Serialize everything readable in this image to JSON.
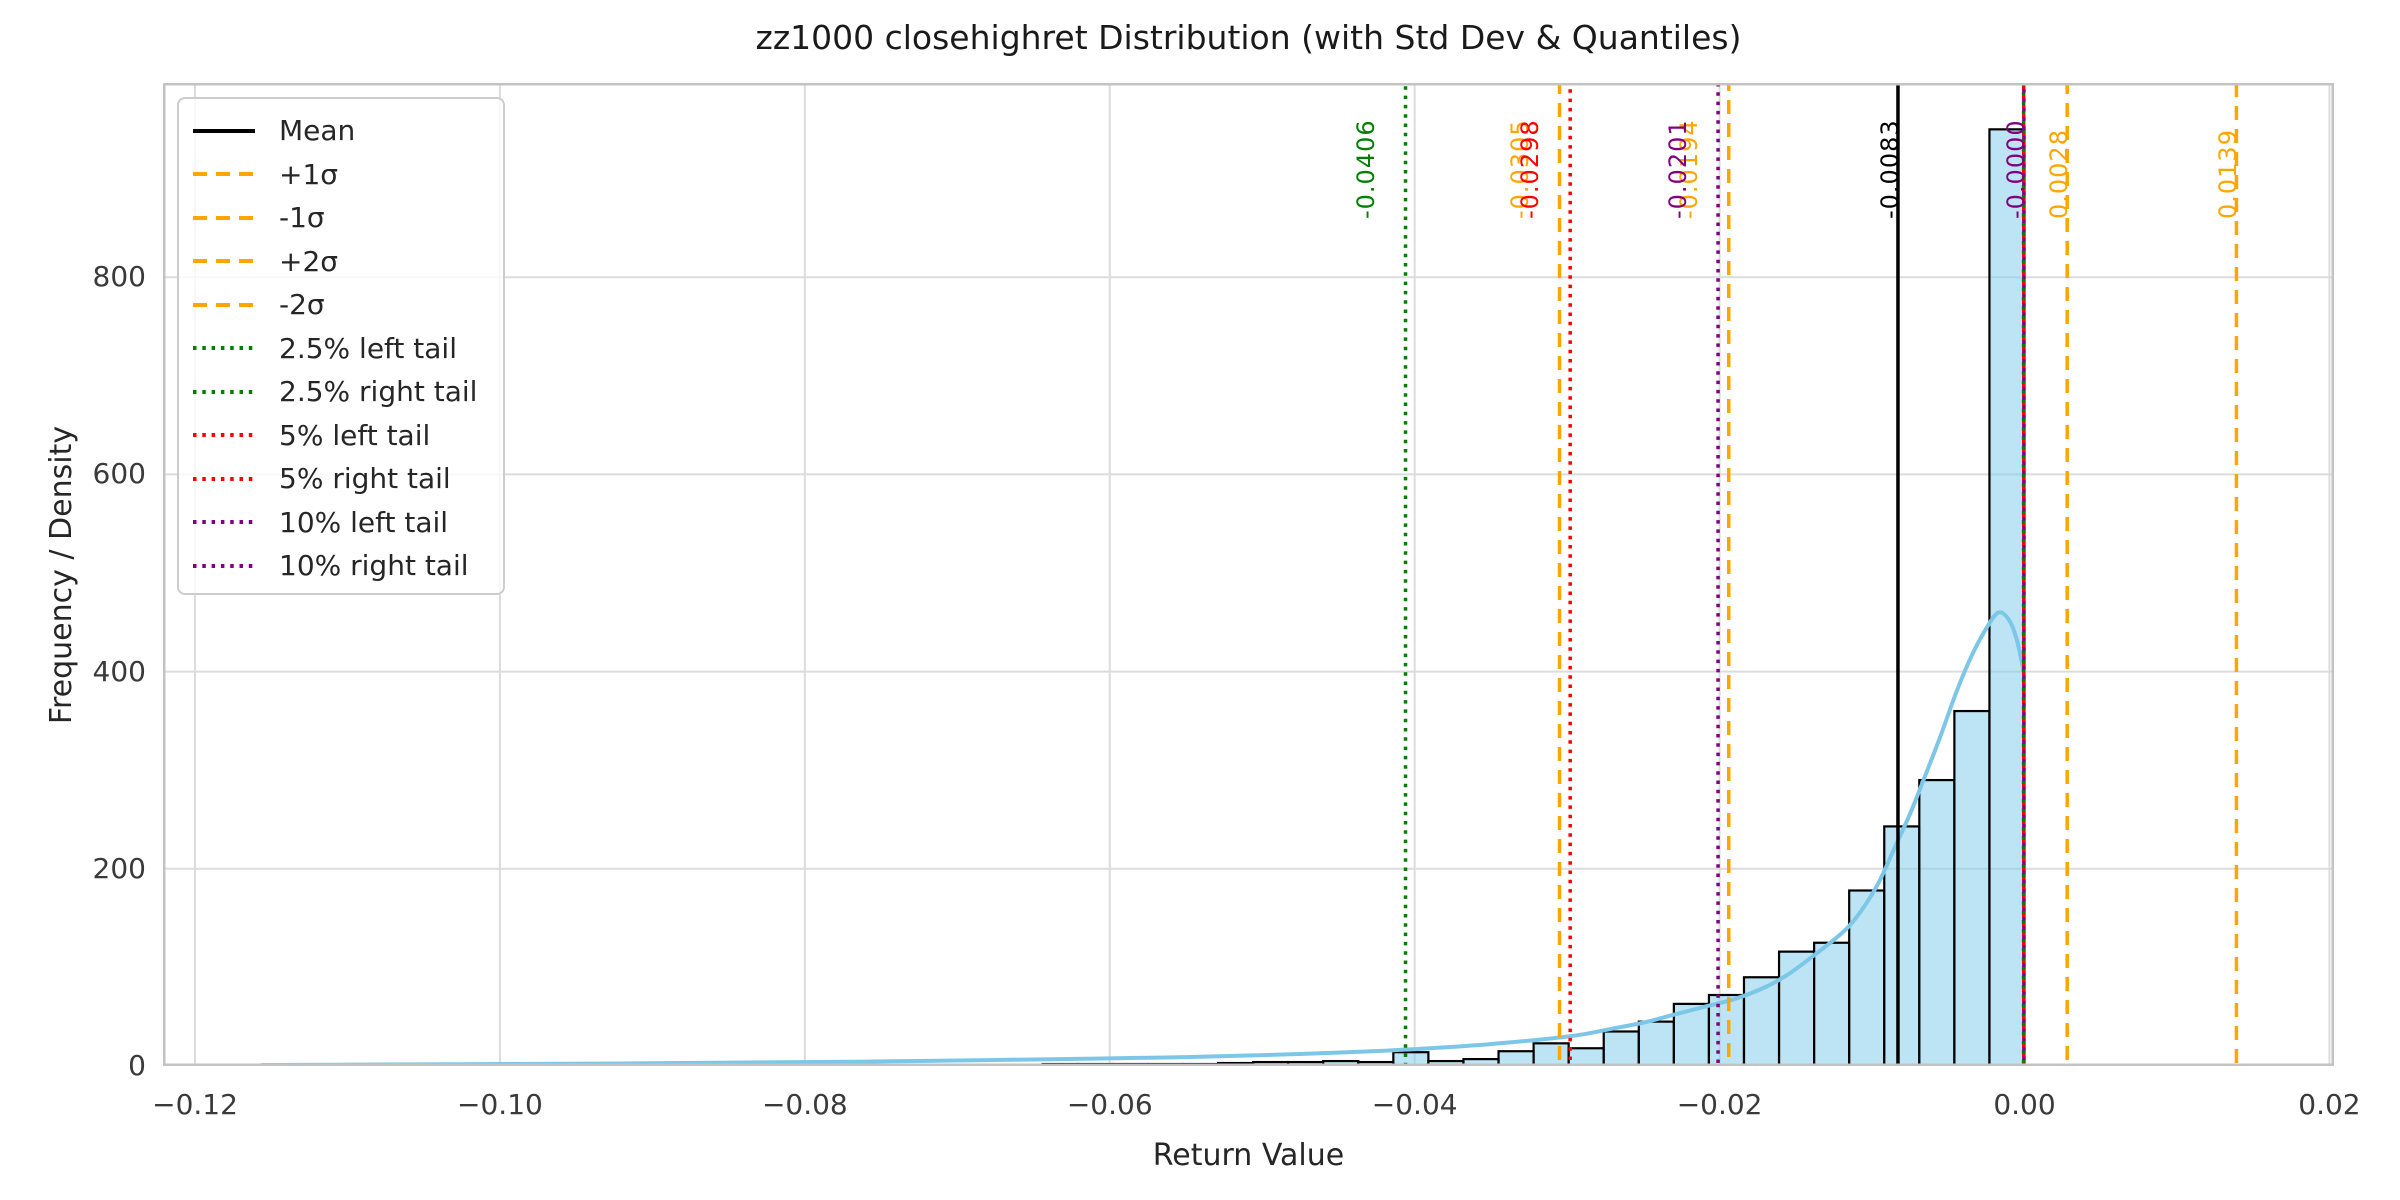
{
  "figure": {
    "title": "zz1000 closehighret Distribution (with Std Dev & Quantiles)",
    "xlabel": "Return Value",
    "ylabel": "Frequency / Density"
  },
  "colors": {
    "background": "#ffffff",
    "grid": "#dcdcdc",
    "spine": "#c3c3c3",
    "title_text": "#1a1a1a",
    "tick_text": "#3a3a3a",
    "hist_fill": "rgba(135,206,235,0.55)",
    "hist_edge": "#000000",
    "kde_line": "#7cc7e8",
    "mean_line": "#000000",
    "sigma_line": "#ffa500",
    "q2_5_line": "#008000",
    "q5_line": "#ff0000",
    "q10_line": "#800080"
  },
  "chart_data": {
    "type": "bar",
    "subtype": "histogram_with_kde",
    "title": "zz1000 closehighret Distribution (with Std Dev & Quantiles)",
    "xlabel": "Return Value",
    "ylabel": "Frequency / Density",
    "xlim": [
      -0.1221,
      0.0203
    ],
    "ylim": [
      0,
      997
    ],
    "grid": true,
    "legend_position": "upper left",
    "x_ticks": [
      {
        "value": -0.12,
        "label": "−0.12"
      },
      {
        "value": -0.1,
        "label": "−0.10"
      },
      {
        "value": -0.08,
        "label": "−0.08"
      },
      {
        "value": -0.06,
        "label": "−0.06"
      },
      {
        "value": -0.04,
        "label": "−0.04"
      },
      {
        "value": -0.02,
        "label": "−0.02"
      },
      {
        "value": 0.0,
        "label": "0.00"
      },
      {
        "value": 0.02,
        "label": "0.02"
      }
    ],
    "y_ticks": [
      {
        "value": 0,
        "label": "0"
      },
      {
        "value": 200,
        "label": "200"
      },
      {
        "value": 400,
        "label": "400"
      },
      {
        "value": 600,
        "label": "600"
      },
      {
        "value": 800,
        "label": "800"
      }
    ],
    "histogram": {
      "bin_start": -0.115,
      "bin_width": 0.0023,
      "counts": [
        1,
        0,
        0,
        0,
        0,
        1,
        0,
        0,
        0,
        1,
        0,
        0,
        1,
        0,
        1,
        0,
        1,
        1,
        1,
        1,
        1,
        1,
        2,
        2,
        2,
        2,
        2,
        3,
        4,
        4,
        5,
        4,
        14,
        5,
        7,
        15,
        23,
        18,
        35,
        45,
        63,
        72,
        90,
        116,
        125,
        178,
        243,
        290,
        360,
        950
      ]
    },
    "kde_points": [
      [
        -0.1156,
        1
      ],
      [
        -0.108,
        1.5
      ],
      [
        -0.1,
        2
      ],
      [
        -0.092,
        2.5
      ],
      [
        -0.084,
        3.5
      ],
      [
        -0.076,
        4.5
      ],
      [
        -0.068,
        6
      ],
      [
        -0.061,
        7.5
      ],
      [
        -0.055,
        9
      ],
      [
        -0.05,
        11
      ],
      [
        -0.046,
        13
      ],
      [
        -0.042,
        15.5
      ],
      [
        -0.039,
        18
      ],
      [
        -0.036,
        21
      ],
      [
        -0.033,
        25
      ],
      [
        -0.031,
        28
      ],
      [
        -0.029,
        32
      ],
      [
        -0.027,
        38
      ],
      [
        -0.025,
        44
      ],
      [
        -0.023,
        52
      ],
      [
        -0.021,
        60
      ],
      [
        -0.019,
        68
      ],
      [
        -0.017,
        80
      ],
      [
        -0.0155,
        93
      ],
      [
        -0.014,
        110
      ],
      [
        -0.0125,
        128
      ],
      [
        -0.0115,
        142
      ],
      [
        -0.0105,
        162
      ],
      [
        -0.0095,
        188
      ],
      [
        -0.0085,
        222
      ],
      [
        -0.0075,
        256
      ],
      [
        -0.0065,
        295
      ],
      [
        -0.0055,
        335
      ],
      [
        -0.0045,
        378
      ],
      [
        -0.0035,
        415
      ],
      [
        -0.0025,
        444
      ],
      [
        -0.0017,
        460
      ],
      [
        -0.001,
        452
      ],
      [
        -0.0005,
        432
      ],
      [
        -5e-05,
        400
      ]
    ],
    "stats": {
      "mean": -0.0083,
      "plus_1_sigma": 0.0028,
      "minus_1_sigma": -0.0194,
      "plus_2_sigma": 0.0139,
      "minus_2_sigma": -0.0305,
      "q2_5_left": -0.0406,
      "q2_5_right": -0.0,
      "q5_left": -0.0298,
      "q5_right": -0.0,
      "q10_left": -0.0201,
      "q10_right": -0.0
    },
    "vlines": [
      {
        "name": "mean-line",
        "value": -0.0083,
        "label": "-0.0083",
        "color": "#000000",
        "style": "solid",
        "side": "right",
        "show_label": true
      },
      {
        "name": "plus-1-sigma-line",
        "value": 0.0028,
        "label": "0.0028",
        "color": "#ffa500",
        "style": "dashed",
        "side": "right",
        "show_label": true
      },
      {
        "name": "minus-1-sigma-line",
        "value": -0.0194,
        "label": "-0.0194",
        "color": "#ffa500",
        "style": "dashed",
        "side": "left",
        "show_label": true
      },
      {
        "name": "plus-2-sigma-line",
        "value": 0.0139,
        "label": "0.0139",
        "color": "#ffa500",
        "style": "dashed",
        "side": "right",
        "show_label": true
      },
      {
        "name": "minus-2-sigma-line",
        "value": -0.0305,
        "label": "-0.0305",
        "color": "#ffa500",
        "style": "dashed",
        "side": "left",
        "show_label": true
      },
      {
        "name": "q2-5-left-line",
        "value": -0.0406,
        "label": "-0.0406",
        "color": "#008000",
        "style": "dotted",
        "side": "left",
        "show_label": true
      },
      {
        "name": "q2-5-right-line",
        "value": -6e-05,
        "label": "",
        "color": "#008000",
        "style": "dotted",
        "side": "right",
        "show_label": false
      },
      {
        "name": "q5-left-line",
        "value": -0.0298,
        "label": "-0.0298",
        "color": "#ff0000",
        "style": "dotted",
        "side": "left",
        "show_label": true
      },
      {
        "name": "q5-right-line",
        "value": -5e-05,
        "label": "",
        "color": "#ff0000",
        "style": "dotted",
        "side": "right",
        "show_label": false
      },
      {
        "name": "q10-left-line",
        "value": -0.0201,
        "label": "-0.0201",
        "color": "#800080",
        "style": "dotted",
        "side": "left",
        "show_label": true
      },
      {
        "name": "q10-right-line",
        "value": -4e-05,
        "label": "-0.0000",
        "color": "#800080",
        "style": "dotted",
        "side": "right",
        "show_label": true
      }
    ],
    "legend": [
      {
        "label": "Mean",
        "color": "#000000",
        "style": "solid"
      },
      {
        "label": "+1σ",
        "color": "#ffa500",
        "style": "dashed"
      },
      {
        "label": "-1σ",
        "color": "#ffa500",
        "style": "dashed"
      },
      {
        "label": "+2σ",
        "color": "#ffa500",
        "style": "dashed"
      },
      {
        "label": "-2σ",
        "color": "#ffa500",
        "style": "dashed"
      },
      {
        "label": "2.5% left tail",
        "color": "#008000",
        "style": "dotted"
      },
      {
        "label": "2.5% right tail",
        "color": "#008000",
        "style": "dotted"
      },
      {
        "label": "5% left tail",
        "color": "#ff0000",
        "style": "dotted"
      },
      {
        "label": "5% right tail",
        "color": "#ff0000",
        "style": "dotted"
      },
      {
        "label": "10% left tail",
        "color": "#800080",
        "style": "dotted"
      },
      {
        "label": "10% right tail",
        "color": "#800080",
        "style": "dotted"
      }
    ]
  }
}
